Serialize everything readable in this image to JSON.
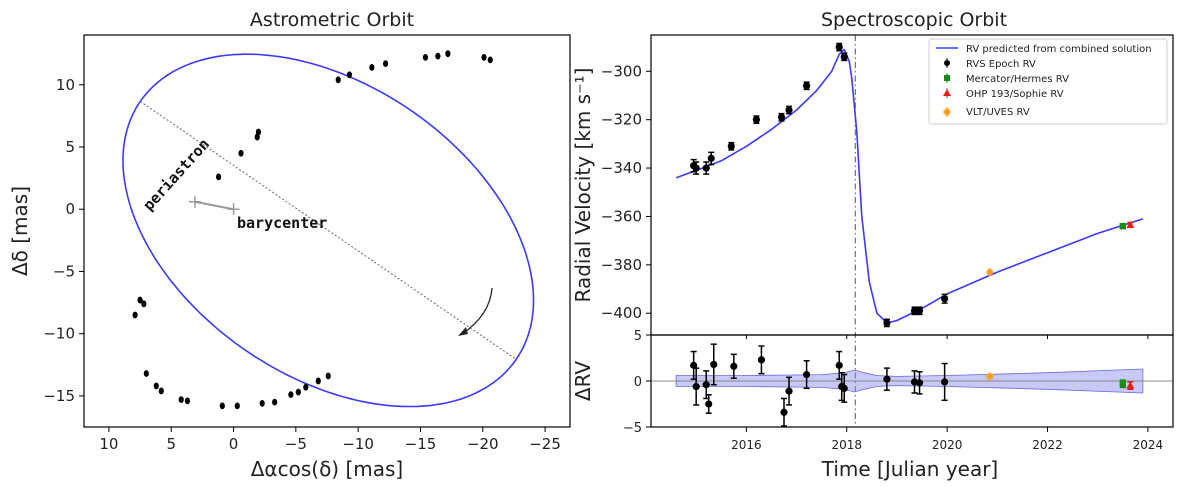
{
  "chart_data": [
    {
      "type": "scatter",
      "title": "Astrometric Orbit",
      "xlabel": "Δαcos(δ) [mas]",
      "ylabel": "Δδ [mas]",
      "xlim": [
        12,
        -27
      ],
      "ylim": [
        -17.5,
        14
      ],
      "xticks": [
        "10",
        "5",
        "0",
        "−5",
        "−10",
        "−15",
        "−20",
        "−25"
      ],
      "xtick_values": [
        10,
        5,
        0,
        -5,
        -10,
        -15,
        -20,
        -25
      ],
      "yticks": [
        "10",
        "5",
        "0",
        "−5",
        "−10",
        "−15"
      ],
      "ytick_values": [
        10,
        5,
        0,
        -5,
        -10,
        -15
      ],
      "orbit_color": "#3a3aff",
      "orbit": {
        "center": [
          -7.6,
          -1.7
        ],
        "semi_major": 18.3,
        "semi_minor": 11.7,
        "angle_deg": 34.5
      },
      "periastron": [
        3.1,
        0.6
      ],
      "barycenter": [
        0,
        0
      ],
      "annotations": [
        "periastron",
        "barycenter"
      ],
      "observation_dots": [
        [
          7.5,
          -7.3
        ],
        [
          7.2,
          -7.6
        ],
        [
          7.9,
          -8.5
        ],
        [
          7.0,
          -13.2
        ],
        [
          6.2,
          -14.2
        ],
        [
          5.8,
          -14.6
        ],
        [
          4.2,
          -15.3
        ],
        [
          3.7,
          -15.4
        ],
        [
          0.9,
          -15.8
        ],
        [
          -0.3,
          -15.8
        ],
        [
          -2.3,
          -15.6
        ],
        [
          -3.3,
          -15.5
        ],
        [
          -4.6,
          -14.9
        ],
        [
          -5.2,
          -14.7
        ],
        [
          -5.8,
          -14.3
        ],
        [
          -6.8,
          -13.8
        ],
        [
          -7.6,
          -13.4
        ],
        [
          -8.4,
          10.4
        ],
        [
          -9.3,
          10.8
        ],
        [
          -11.1,
          11.4
        ],
        [
          -12.2,
          11.7
        ],
        [
          -15.4,
          12.2
        ],
        [
          -16.4,
          12.3
        ],
        [
          -17.2,
          12.5
        ],
        [
          -20.1,
          12.2
        ],
        [
          -20.6,
          12.0
        ],
        [
          1.2,
          2.6
        ],
        [
          -0.6,
          4.5
        ],
        [
          -1.9,
          5.8
        ],
        [
          -2.0,
          6.2
        ]
      ],
      "direction_arrow": "clockwise"
    },
    {
      "type": "line",
      "title": "Spectroscopic Orbit",
      "xlabel": "Time [Julian year]",
      "ylabel": "Radial Velocity [km s⁻¹]",
      "xlim": [
        2014.1,
        2024.5
      ],
      "ylim": [
        -409,
        -285
      ],
      "xticks": [
        "2016",
        "2018",
        "2020",
        "2022",
        "2024"
      ],
      "xtick_values": [
        2016,
        2018,
        2020,
        2022,
        2024
      ],
      "yticks": [
        "−300",
        "−320",
        "−340",
        "−360",
        "−380",
        "−400"
      ],
      "ytick_values": [
        -300,
        -320,
        -340,
        -360,
        -380,
        -400
      ],
      "periastron_epoch": 2018.17,
      "legend_position": "top-right",
      "legend": [
        {
          "label": "RV predicted from combined solution",
          "color": "#3a3aff",
          "marker": "line"
        },
        {
          "label": "RVS Epoch RV",
          "color": "#000000",
          "marker": "circle"
        },
        {
          "label": "Mercator/Hermes RV",
          "color": "#1a8a1a",
          "marker": "square"
        },
        {
          "label": "OHP 193/Sophie RV",
          "color": "#e02020",
          "marker": "triangle"
        },
        {
          "label": "VLT/UVES RV",
          "color": "#ffa020",
          "marker": "diamond"
        }
      ],
      "model_curve": {
        "x": [
          2014.6,
          2015.0,
          2015.5,
          2016.0,
          2016.5,
          2017.0,
          2017.4,
          2017.7,
          2017.85,
          2017.95,
          2018.05,
          2018.1,
          2018.2,
          2018.3,
          2018.45,
          2018.6,
          2018.8,
          2019.0,
          2019.5,
          2020.0,
          2021.0,
          2022.0,
          2023.0,
          2023.9
        ],
        "y": [
          -344,
          -341,
          -337,
          -331,
          -324,
          -316,
          -308,
          -300,
          -293,
          -291,
          -296,
          -303,
          -325,
          -360,
          -387,
          -400,
          -404,
          -403,
          -398,
          -392,
          -383,
          -375,
          -367,
          -361
        ]
      },
      "series": [
        {
          "name": "RVS Epoch RV",
          "marker": "circle",
          "x": [
            2014.95,
            2015.0,
            2015.2,
            2015.3,
            2015.7,
            2016.2,
            2016.7,
            2016.85,
            2017.2,
            2017.85,
            2017.95,
            2018.8,
            2019.35,
            2019.45,
            2019.95
          ],
          "y": [
            -339,
            -340,
            -340,
            -336,
            -331,
            -320,
            -319,
            -316,
            -306,
            -290,
            -294,
            -404,
            -399,
            -399,
            -394
          ],
          "err": [
            2.5,
            2.5,
            2.5,
            2.5,
            1.5,
            1.5,
            1.5,
            1.5,
            1.5,
            1.5,
            1.5,
            1.5,
            1.5,
            1.5,
            1.8
          ]
        },
        {
          "name": "Mercator/Hermes RV",
          "marker": "square",
          "x": [
            2023.5
          ],
          "y": [
            -364
          ],
          "err": [
            1
          ]
        },
        {
          "name": "OHP 193/Sophie RV",
          "marker": "triangle",
          "x": [
            2023.65
          ],
          "y": [
            -363.5
          ],
          "err": [
            1
          ]
        },
        {
          "name": "VLT/UVES RV",
          "marker": "diamond",
          "x": [
            2020.85
          ],
          "y": [
            -383
          ],
          "err": [
            0.5
          ]
        }
      ]
    },
    {
      "type": "scatter",
      "ylabel": "ΔRV",
      "xlim": [
        2014.1,
        2024.5
      ],
      "ylim": [
        -5,
        5
      ],
      "yticks": [
        "5",
        "0",
        "−5"
      ],
      "ytick_values": [
        5,
        0,
        -5
      ],
      "band_color": "#8888ee",
      "band": {
        "x": [
          2014.6,
          2016.0,
          2017.5,
          2017.95,
          2018.15,
          2018.35,
          2018.6,
          2019.0,
          2020.0,
          2022.0,
          2023.9
        ],
        "upper": [
          0.6,
          0.6,
          0.7,
          0.9,
          1.2,
          0.9,
          0.6,
          0.5,
          0.6,
          0.9,
          1.3
        ],
        "lower": [
          -0.6,
          -0.6,
          -0.7,
          -0.9,
          -1.2,
          -0.9,
          -0.6,
          -0.5,
          -0.6,
          -0.9,
          -1.3
        ]
      },
      "series": [
        {
          "name": "RVS Epoch RV",
          "marker": "circle",
          "x": [
            2014.95,
            2015.0,
            2015.2,
            2015.25,
            2015.35,
            2015.75,
            2016.3,
            2016.75,
            2016.85,
            2017.2,
            2017.85,
            2017.9,
            2017.95,
            2018.8,
            2019.35,
            2019.45,
            2019.95
          ],
          "y": [
            1.7,
            -0.6,
            -0.4,
            -2.5,
            1.8,
            1.6,
            2.3,
            -3.4,
            -1.1,
            0.7,
            1.7,
            -0.6,
            -0.8,
            0.2,
            -0.1,
            -0.2,
            -0.1
          ],
          "err": [
            1.5,
            2.0,
            1.5,
            1.0,
            2.2,
            1.3,
            1.5,
            1.5,
            1.5,
            1.5,
            1.5,
            1.5,
            1.5,
            1.2,
            1.2,
            1.2,
            2.0
          ]
        },
        {
          "name": "Mercator/Hermes RV",
          "marker": "square",
          "x": [
            2023.5
          ],
          "y": [
            -0.3
          ],
          "err": [
            0.4
          ]
        },
        {
          "name": "OHP 193/Sophie RV",
          "marker": "triangle",
          "x": [
            2023.65
          ],
          "y": [
            -0.5
          ],
          "err": [
            0.4
          ]
        },
        {
          "name": "VLT/UVES RV",
          "marker": "diamond",
          "x": [
            2020.85
          ],
          "y": [
            0.5
          ],
          "err": [
            0.2
          ]
        }
      ]
    }
  ]
}
